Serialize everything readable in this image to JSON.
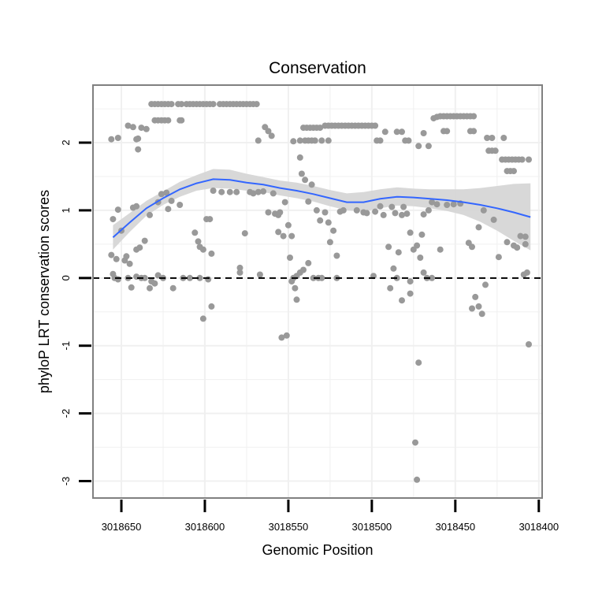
{
  "chart_data": {
    "type": "scatter",
    "title": "Conservation",
    "xlabel": "Genomic Position",
    "ylabel": "phyloP LRT conservation scores",
    "xlim": [
      3018667,
      3018398
    ],
    "x_reversed": true,
    "ylim": [
      -3.25,
      2.85
    ],
    "x_ticks": [
      3018650,
      3018600,
      3018550,
      3018500,
      3018450,
      3018400
    ],
    "x_tick_labels": [
      "3018650",
      "3018600",
      "3018550",
      "3018500",
      "3018450",
      "3018400"
    ],
    "y_ticks": [
      -3,
      -2,
      -1,
      0,
      1,
      2
    ],
    "y_tick_labels": [
      "-3",
      "-2",
      "-1",
      "0",
      "1",
      "2"
    ],
    "grid": true,
    "reference_line": {
      "y": 0,
      "style": "dashed"
    },
    "colors": {
      "points": "#999999",
      "smooth_line": "#3366FF",
      "ribbon": "#d4d4d4",
      "grid": "#f0f0f0",
      "frame": "#808080"
    },
    "points": [
      [
        3018656,
        2.05
      ],
      [
        3018652,
        2.07
      ],
      [
        3018646,
        2.25
      ],
      [
        3018643,
        2.23
      ],
      [
        3018641,
        2.05
      ],
      [
        3018640,
        2.06
      ],
      [
        3018640,
        1.9
      ],
      [
        3018638,
        2.22
      ],
      [
        3018635,
        2.2
      ],
      [
        3018632,
        2.57
      ],
      [
        3018630,
        2.57
      ],
      [
        3018628,
        2.57
      ],
      [
        3018626,
        2.57
      ],
      [
        3018624,
        2.57
      ],
      [
        3018622,
        2.57
      ],
      [
        3018620,
        2.57
      ],
      [
        3018616,
        2.57
      ],
      [
        3018614,
        2.57
      ],
      [
        3018630,
        2.33
      ],
      [
        3018628,
        2.33
      ],
      [
        3018626,
        2.33
      ],
      [
        3018624,
        2.33
      ],
      [
        3018622,
        2.33
      ],
      [
        3018615,
        2.33
      ],
      [
        3018614,
        2.33
      ],
      [
        3018611,
        2.57
      ],
      [
        3018609,
        2.57
      ],
      [
        3018607,
        2.57
      ],
      [
        3018605,
        2.57
      ],
      [
        3018603,
        2.57
      ],
      [
        3018601,
        2.57
      ],
      [
        3018599,
        2.57
      ],
      [
        3018597,
        2.57
      ],
      [
        3018595,
        2.57
      ],
      [
        3018591,
        2.57
      ],
      [
        3018589,
        2.57
      ],
      [
        3018587,
        2.57
      ],
      [
        3018585,
        2.57
      ],
      [
        3018583,
        2.57
      ],
      [
        3018581,
        2.57
      ],
      [
        3018579,
        2.57
      ],
      [
        3018577,
        2.57
      ],
      [
        3018575,
        2.57
      ],
      [
        3018573,
        2.57
      ],
      [
        3018571,
        2.57
      ],
      [
        3018569,
        2.57
      ],
      [
        3018568,
        2.03
      ],
      [
        3018564,
        2.23
      ],
      [
        3018562,
        2.17
      ],
      [
        3018560,
        2.1
      ],
      [
        3018547,
        2.02
      ],
      [
        3018543,
        2.03
      ],
      [
        3018541,
        2.22
      ],
      [
        3018539,
        2.22
      ],
      [
        3018537,
        2.22
      ],
      [
        3018535,
        2.22
      ],
      [
        3018533,
        2.22
      ],
      [
        3018531,
        2.22
      ],
      [
        3018540,
        2.03
      ],
      [
        3018538,
        2.03
      ],
      [
        3018536,
        2.03
      ],
      [
        3018534,
        2.03
      ],
      [
        3018530,
        2.03
      ],
      [
        3018526,
        2.03
      ],
      [
        3018528,
        2.25
      ],
      [
        3018526,
        2.25
      ],
      [
        3018524,
        2.25
      ],
      [
        3018522,
        2.25
      ],
      [
        3018520,
        2.25
      ],
      [
        3018518,
        2.25
      ],
      [
        3018516,
        2.25
      ],
      [
        3018514,
        2.25
      ],
      [
        3018512,
        2.25
      ],
      [
        3018510,
        2.25
      ],
      [
        3018508,
        2.25
      ],
      [
        3018506,
        2.25
      ],
      [
        3018504,
        2.25
      ],
      [
        3018502,
        2.25
      ],
      [
        3018500,
        2.25
      ],
      [
        3018498,
        2.25
      ],
      [
        3018497,
        2.03
      ],
      [
        3018495,
        2.03
      ],
      [
        3018492,
        2.16
      ],
      [
        3018480,
        2.03
      ],
      [
        3018478,
        2.03
      ],
      [
        3018485,
        2.16
      ],
      [
        3018482,
        2.16
      ],
      [
        3018469,
        2.14
      ],
      [
        3018472,
        1.95
      ],
      [
        3018466,
        1.95
      ],
      [
        3018463,
        2.36
      ],
      [
        3018461,
        2.38
      ],
      [
        3018459,
        2.39
      ],
      [
        3018457,
        2.39
      ],
      [
        3018455,
        2.39
      ],
      [
        3018453,
        2.39
      ],
      [
        3018451,
        2.39
      ],
      [
        3018449,
        2.39
      ],
      [
        3018447,
        2.39
      ],
      [
        3018445,
        2.39
      ],
      [
        3018443,
        2.39
      ],
      [
        3018441,
        2.39
      ],
      [
        3018439,
        2.39
      ],
      [
        3018457,
        2.17
      ],
      [
        3018455,
        2.17
      ],
      [
        3018441,
        2.17
      ],
      [
        3018439,
        2.17
      ],
      [
        3018431,
        2.07
      ],
      [
        3018428,
        2.07
      ],
      [
        3018421,
        2.07
      ],
      [
        3018430,
        1.88
      ],
      [
        3018428,
        1.88
      ],
      [
        3018426,
        1.88
      ],
      [
        3018422,
        1.75
      ],
      [
        3018420,
        1.75
      ],
      [
        3018418,
        1.75
      ],
      [
        3018416,
        1.75
      ],
      [
        3018414,
        1.75
      ],
      [
        3018412,
        1.75
      ],
      [
        3018410,
        1.75
      ],
      [
        3018406,
        1.75
      ],
      [
        3018419,
        1.58
      ],
      [
        3018417,
        1.58
      ],
      [
        3018415,
        1.58
      ],
      [
        3018656,
        0.34
      ],
      [
        3018655,
        0.87
      ],
      [
        3018653,
        0.28
      ],
      [
        3018652,
        1.01
      ],
      [
        3018650,
        0.7
      ],
      [
        3018648,
        0.26
      ],
      [
        3018647,
        0.32
      ],
      [
        3018645,
        0.21
      ],
      [
        3018643,
        1.04
      ],
      [
        3018641,
        1.06
      ],
      [
        3018641,
        0.42
      ],
      [
        3018639,
        0.45
      ],
      [
        3018636,
        0.55
      ],
      [
        3018633,
        0.93
      ],
      [
        3018628,
        1.12
      ],
      [
        3018626,
        1.24
      ],
      [
        3018623,
        1.26
      ],
      [
        3018622,
        1.02
      ],
      [
        3018620,
        1.14
      ],
      [
        3018615,
        1.08
      ],
      [
        3018606,
        0.67
      ],
      [
        3018604,
        0.54
      ],
      [
        3018603,
        0.46
      ],
      [
        3018601,
        0.42
      ],
      [
        3018599,
        0.87
      ],
      [
        3018597,
        0.87
      ],
      [
        3018596,
        0.36
      ],
      [
        3018595,
        1.29
      ],
      [
        3018590,
        1.27
      ],
      [
        3018585,
        1.27
      ],
      [
        3018581,
        1.27
      ],
      [
        3018576,
        0.66
      ],
      [
        3018573,
        1.27
      ],
      [
        3018571,
        1.25
      ],
      [
        3018568,
        1.27
      ],
      [
        3018565,
        1.28
      ],
      [
        3018562,
        0.97
      ],
      [
        3018559,
        1.25
      ],
      [
        3018558,
        0.95
      ],
      [
        3018556,
        0.93
      ],
      [
        3018555,
        0.97
      ],
      [
        3018552,
        1.12
      ],
      [
        3018550,
        0.78
      ],
      [
        3018548,
        0.62
      ],
      [
        3018556,
        0.68
      ],
      [
        3018553,
        0.62
      ],
      [
        3018549,
        0.3
      ],
      [
        3018543,
        1.78
      ],
      [
        3018542,
        1.54
      ],
      [
        3018540,
        1.45
      ],
      [
        3018538,
        1.13
      ],
      [
        3018536,
        1.38
      ],
      [
        3018533,
        1.0
      ],
      [
        3018531,
        0.85
      ],
      [
        3018528,
        0.97
      ],
      [
        3018526,
        0.82
      ],
      [
        3018525,
        0.53
      ],
      [
        3018523,
        0.7
      ],
      [
        3018521,
        0.33
      ],
      [
        3018519,
        0.98
      ],
      [
        3018517,
        1.0
      ],
      [
        3018509,
        1.0
      ],
      [
        3018505,
        0.97
      ],
      [
        3018503,
        0.96
      ],
      [
        3018498,
        0.98
      ],
      [
        3018495,
        1.06
      ],
      [
        3018493,
        0.93
      ],
      [
        3018490,
        0.46
      ],
      [
        3018488,
        1.05
      ],
      [
        3018486,
        0.96
      ],
      [
        3018484,
        0.38
      ],
      [
        3018482,
        0.93
      ],
      [
        3018481,
        1.05
      ],
      [
        3018479,
        0.95
      ],
      [
        3018477,
        0.67
      ],
      [
        3018475,
        0.42
      ],
      [
        3018473,
        0.48
      ],
      [
        3018471,
        0.3
      ],
      [
        3018469,
        0.94
      ],
      [
        3018466,
        1.0
      ],
      [
        3018464,
        1.12
      ],
      [
        3018461,
        1.09
      ],
      [
        3018459,
        0.42
      ],
      [
        3018455,
        1.08
      ],
      [
        3018451,
        1.09
      ],
      [
        3018447,
        1.1
      ],
      [
        3018442,
        0.52
      ],
      [
        3018440,
        0.46
      ],
      [
        3018436,
        0.75
      ],
      [
        3018433,
        1.0
      ],
      [
        3018427,
        0.86
      ],
      [
        3018424,
        0.31
      ],
      [
        3018419,
        0.53
      ],
      [
        3018415,
        0.48
      ],
      [
        3018413,
        0.45
      ],
      [
        3018411,
        0.62
      ],
      [
        3018408,
        0.61
      ],
      [
        3018408,
        0.5
      ],
      [
        3018655,
        0.06
      ],
      [
        3018654,
        0.0
      ],
      [
        3018652,
        -0.02
      ],
      [
        3018646,
        0.0
      ],
      [
        3018644,
        -0.14
      ],
      [
        3018641,
        0.02
      ],
      [
        3018638,
        0.0
      ],
      [
        3018636,
        0.0
      ],
      [
        3018633,
        -0.15
      ],
      [
        3018632,
        -0.05
      ],
      [
        3018630,
        -0.08
      ],
      [
        3018628,
        0.04
      ],
      [
        3018625,
        0.0
      ],
      [
        3018619,
        -0.15
      ],
      [
        3018613,
        0.0
      ],
      [
        3018609,
        0.0
      ],
      [
        3018603,
        0.0
      ],
      [
        3018601,
        -0.6
      ],
      [
        3018598,
        -0.02
      ],
      [
        3018596,
        -0.42
      ],
      [
        3018579,
        0.15
      ],
      [
        3018579,
        0.08
      ],
      [
        3018567,
        0.05
      ],
      [
        3018554,
        -0.88
      ],
      [
        3018551,
        -0.85
      ],
      [
        3018548,
        -0.05
      ],
      [
        3018547,
        0.0
      ],
      [
        3018546,
        -0.15
      ],
      [
        3018545,
        0.03
      ],
      [
        3018545,
        -0.32
      ],
      [
        3018543,
        0.08
      ],
      [
        3018541,
        0.12
      ],
      [
        3018538,
        0.22
      ],
      [
        3018535,
        0.0
      ],
      [
        3018532,
        0.0
      ],
      [
        3018530,
        0.0
      ],
      [
        3018521,
        0.0
      ],
      [
        3018499,
        0.03
      ],
      [
        3018489,
        -0.15
      ],
      [
        3018487,
        0.14
      ],
      [
        3018485,
        0.0
      ],
      [
        3018482,
        -0.33
      ],
      [
        3018477,
        -0.23
      ],
      [
        3018477,
        -0.05
      ],
      [
        3018474,
        -2.43
      ],
      [
        3018473,
        -2.98
      ],
      [
        3018472,
        -1.25
      ],
      [
        3018470,
        0.64
      ],
      [
        3018469,
        0.08
      ],
      [
        3018467,
        0.0
      ],
      [
        3018464,
        0.0
      ],
      [
        3018440,
        -0.45
      ],
      [
        3018438,
        -0.28
      ],
      [
        3018436,
        -0.42
      ],
      [
        3018434,
        -0.53
      ],
      [
        3018432,
        -0.1
      ],
      [
        3018409,
        0.05
      ],
      [
        3018407,
        0.08
      ],
      [
        3018406,
        -0.98
      ]
    ],
    "smooth": {
      "x": [
        3018655,
        3018645,
        3018635,
        3018625,
        3018615,
        3018605,
        3018595,
        3018585,
        3018575,
        3018565,
        3018555,
        3018545,
        3018535,
        3018525,
        3018515,
        3018505,
        3018495,
        3018485,
        3018475,
        3018465,
        3018455,
        3018445,
        3018435,
        3018425,
        3018415,
        3018405
      ],
      "y": [
        0.6,
        0.82,
        1.03,
        1.18,
        1.31,
        1.4,
        1.46,
        1.45,
        1.41,
        1.38,
        1.33,
        1.29,
        1.24,
        1.18,
        1.12,
        1.12,
        1.17,
        1.2,
        1.19,
        1.17,
        1.15,
        1.12,
        1.08,
        1.03,
        0.97,
        0.9
      ],
      "lower": [
        0.42,
        0.68,
        0.92,
        1.08,
        1.2,
        1.29,
        1.33,
        1.32,
        1.29,
        1.27,
        1.22,
        1.18,
        1.13,
        1.06,
        1.0,
        0.98,
        1.03,
        1.07,
        1.06,
        1.03,
        0.99,
        0.93,
        0.83,
        0.7,
        0.55,
        0.41
      ],
      "upper": [
        0.78,
        0.96,
        1.14,
        1.28,
        1.42,
        1.52,
        1.61,
        1.6,
        1.54,
        1.49,
        1.44,
        1.41,
        1.36,
        1.3,
        1.25,
        1.27,
        1.31,
        1.34,
        1.32,
        1.31,
        1.31,
        1.31,
        1.33,
        1.36,
        1.39,
        1.4
      ]
    }
  }
}
